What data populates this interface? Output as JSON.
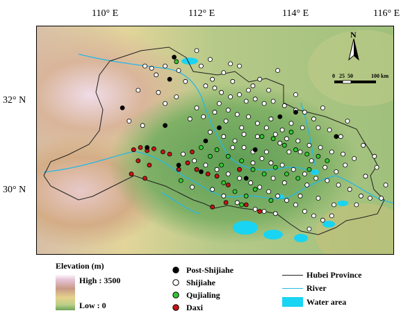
{
  "map": {
    "lon_labels": [
      "110° E",
      "112° E",
      "114° E",
      "116° E"
    ],
    "lat_labels": [
      "32° N",
      "30° N"
    ],
    "lon_values": [
      110,
      112,
      114,
      116
    ],
    "lat_values": [
      32,
      30
    ],
    "extent": {
      "lon": [
        108.05,
        116.0
      ],
      "lat": [
        28.6,
        33.8
      ]
    },
    "colors": {
      "water": "#19d4f2",
      "border": "#202020",
      "river": "#26b8e6",
      "post_shijiahe": "#000000",
      "shijiahe": "#ffffff",
      "qujialing": "#32c832",
      "daxi": "#c81414"
    },
    "north_label": "N",
    "scale_labels": [
      "0",
      "25",
      "50",
      "100 km"
    ]
  },
  "legend": {
    "elevation": {
      "title": "Elevation (m)",
      "high": "High : 3500",
      "low": "Low : 0"
    },
    "sites": [
      {
        "label": "Post-Shijiahe",
        "color": "#000000"
      },
      {
        "label": "Shijiahe",
        "color": "#ffffff"
      },
      {
        "label": "Qujialing",
        "color": "#32c832"
      },
      {
        "label": "Daxi",
        "color": "#c81414"
      }
    ],
    "features": [
      {
        "label": "Hubei Province",
        "symbol": "line",
        "color": "#202020"
      },
      {
        "label": "River",
        "symbol": "line",
        "color": "#26b8e6"
      },
      {
        "label": "Water area",
        "symbol": "box",
        "color": "#19d4f2"
      }
    ]
  },
  "sites": {
    "post_shijiahe": [
      [
        111.1,
        33.1
      ],
      [
        111.0,
        32.6
      ],
      [
        109.95,
        31.95
      ],
      [
        110.9,
        31.55
      ],
      [
        111.8,
        31.2
      ],
      [
        112.9,
        31.0
      ],
      [
        113.8,
        31.85
      ],
      [
        114.7,
        31.3
      ],
      [
        113.45,
        31.75
      ],
      [
        112.1,
        31.5
      ],
      [
        111.7,
        30.5
      ],
      [
        111.2,
        30.65
      ],
      [
        112.7,
        30.35
      ],
      [
        110.5,
        31.05
      ]
    ],
    "shijiahe": [
      [
        111.6,
        33.25
      ],
      [
        111.9,
        33.05
      ],
      [
        110.6,
        32.85
      ],
      [
        110.45,
        32.9
      ],
      [
        110.7,
        32.7
      ],
      [
        111.2,
        32.8
      ],
      [
        111.35,
        32.55
      ],
      [
        111.8,
        32.45
      ],
      [
        112.0,
        32.4
      ],
      [
        112.15,
        32.3
      ],
      [
        112.35,
        32.2
      ],
      [
        112.55,
        32.25
      ],
      [
        112.7,
        32.1
      ],
      [
        112.9,
        32.15
      ],
      [
        113.1,
        32.05
      ],
      [
        113.3,
        32.1
      ],
      [
        113.55,
        32.0
      ],
      [
        113.8,
        31.9
      ],
      [
        114.0,
        31.85
      ],
      [
        114.2,
        31.7
      ],
      [
        112.1,
        32.05
      ],
      [
        112.3,
        31.9
      ],
      [
        112.5,
        31.8
      ],
      [
        112.75,
        31.75
      ],
      [
        112.95,
        31.6
      ],
      [
        113.15,
        31.5
      ],
      [
        113.35,
        31.35
      ],
      [
        113.6,
        31.25
      ],
      [
        113.85,
        31.2
      ],
      [
        114.1,
        31.1
      ],
      [
        114.35,
        31.05
      ],
      [
        114.6,
        30.95
      ],
      [
        114.85,
        30.9
      ],
      [
        115.1,
        30.8
      ],
      [
        112.2,
        31.3
      ],
      [
        112.45,
        31.2
      ],
      [
        112.65,
        31.05
      ],
      [
        112.85,
        30.95
      ],
      [
        113.05,
        30.8
      ],
      [
        113.25,
        30.7
      ],
      [
        113.5,
        30.65
      ],
      [
        113.75,
        30.55
      ],
      [
        114.0,
        30.45
      ],
      [
        114.25,
        30.35
      ],
      [
        114.5,
        30.3
      ],
      [
        114.75,
        30.2
      ],
      [
        115.0,
        30.1
      ],
      [
        115.25,
        29.95
      ],
      [
        115.45,
        29.9
      ],
      [
        111.3,
        30.9
      ],
      [
        111.55,
        30.75
      ],
      [
        111.8,
        30.65
      ],
      [
        112.05,
        30.55
      ],
      [
        112.3,
        30.45
      ],
      [
        112.55,
        30.35
      ],
      [
        112.8,
        30.25
      ],
      [
        113.0,
        30.15
      ],
      [
        113.2,
        30.05
      ],
      [
        113.4,
        29.95
      ],
      [
        113.6,
        29.85
      ],
      [
        113.8,
        29.75
      ],
      [
        114.0,
        29.6
      ],
      [
        114.2,
        29.5
      ],
      [
        114.4,
        29.4
      ],
      [
        110.3,
        32.35
      ],
      [
        110.1,
        31.65
      ],
      [
        110.4,
        31.55
      ],
      [
        113.7,
        31.6
      ],
      [
        113.95,
        31.5
      ],
      [
        114.3,
        31.5
      ],
      [
        114.55,
        31.45
      ],
      [
        114.8,
        31.3
      ],
      [
        115.3,
        31.1
      ],
      [
        115.6,
        30.6
      ],
      [
        115.8,
        30.2
      ],
      [
        113.2,
        32.35
      ],
      [
        112.85,
        32.45
      ],
      [
        112.4,
        32.55
      ],
      [
        111.95,
        32.6
      ],
      [
        111.6,
        31.95
      ],
      [
        111.45,
        31.7
      ],
      [
        112.25,
        31.65
      ],
      [
        112.6,
        31.5
      ],
      [
        112.4,
        31.05
      ],
      [
        113.5,
        31.45
      ],
      [
        113.9,
        30.95
      ],
      [
        114.15,
        30.75
      ],
      [
        114.45,
        30.6
      ],
      [
        114.7,
        30.5
      ],
      [
        114.9,
        30.65
      ],
      [
        113.3,
        30.35
      ],
      [
        113.55,
        30.25
      ],
      [
        112.2,
        29.95
      ],
      [
        111.95,
        30.1
      ],
      [
        112.5,
        29.8
      ],
      [
        113.1,
        29.6
      ],
      [
        114.6,
        29.5
      ],
      [
        114.1,
        29.2
      ],
      [
        115.15,
        29.75
      ],
      [
        111.15,
        32.2
      ],
      [
        110.75,
        32.3
      ],
      [
        110.9,
        32.05
      ],
      [
        113.8,
        32.25
      ],
      [
        114.4,
        31.95
      ],
      [
        111.9,
        31.4
      ],
      [
        113.0,
        32.6
      ],
      [
        112.2,
        32.75
      ],
      [
        111.7,
        32.9
      ],
      [
        110.9,
        32.9
      ],
      [
        112.95,
        31.3
      ],
      [
        113.65,
        30.95
      ],
      [
        114.05,
        30.2
      ],
      [
        113.9,
        29.95
      ],
      [
        112.9,
        29.65
      ],
      [
        111.5,
        30.15
      ],
      [
        115.55,
        30.85
      ],
      [
        114.95,
        31.65
      ],
      [
        115.35,
        30.4
      ],
      [
        112.55,
        32.9
      ],
      [
        113.4,
        32.8
      ],
      [
        114.3,
        29.9
      ],
      [
        113.35,
        29.55
      ],
      [
        112.65,
        31.35
      ],
      [
        112.85,
        30.7
      ],
      [
        113.15,
        30.95
      ],
      [
        113.45,
        31.15
      ],
      [
        112.0,
        31.85
      ],
      [
        112.75,
        32.35
      ],
      [
        113.25,
        31.7
      ],
      [
        111.75,
        31.75
      ],
      [
        112.35,
        32.95
      ],
      [
        114.65,
        29.75
      ],
      [
        115.7,
        29.9
      ]
    ],
    "qujialing": [
      [
        111.15,
        33.0
      ],
      [
        112.05,
        31.0
      ],
      [
        112.3,
        30.85
      ],
      [
        112.6,
        30.75
      ],
      [
        112.85,
        30.55
      ],
      [
        113.1,
        30.45
      ],
      [
        113.35,
        30.6
      ],
      [
        113.6,
        30.45
      ],
      [
        113.85,
        30.35
      ],
      [
        114.1,
        30.55
      ],
      [
        112.2,
        30.25
      ],
      [
        112.45,
        30.05
      ],
      [
        112.7,
        29.95
      ],
      [
        113.3,
        31.25
      ],
      [
        113.55,
        31.1
      ],
      [
        113.8,
        31.0
      ],
      [
        114.05,
        30.9
      ],
      [
        114.3,
        30.85
      ],
      [
        112.15,
        30.65
      ],
      [
        111.9,
        30.85
      ],
      [
        111.7,
        31.05
      ],
      [
        113.05,
        31.3
      ],
      [
        112.6,
        29.75
      ],
      [
        113.25,
        29.85
      ],
      [
        113.7,
        31.4
      ],
      [
        111.25,
        30.3
      ],
      [
        112.9,
        30.1
      ],
      [
        114.5,
        30.75
      ]
    ],
    "daxi": [
      [
        110.2,
        31.0
      ],
      [
        110.35,
        31.05
      ],
      [
        110.5,
        30.98
      ],
      [
        110.65,
        31.02
      ],
      [
        110.85,
        30.95
      ],
      [
        111.0,
        30.9
      ],
      [
        110.3,
        30.75
      ],
      [
        110.55,
        30.65
      ],
      [
        111.4,
        30.7
      ],
      [
        111.6,
        30.55
      ],
      [
        111.85,
        30.45
      ],
      [
        112.05,
        30.4
      ],
      [
        112.3,
        30.2
      ],
      [
        111.95,
        29.7
      ],
      [
        112.7,
        29.75
      ],
      [
        113.0,
        29.6
      ],
      [
        112.25,
        29.8
      ],
      [
        110.15,
        30.45
      ],
      [
        110.45,
        30.35
      ],
      [
        111.5,
        30.95
      ],
      [
        112.55,
        30.55
      ],
      [
        111.2,
        30.55
      ]
    ]
  }
}
